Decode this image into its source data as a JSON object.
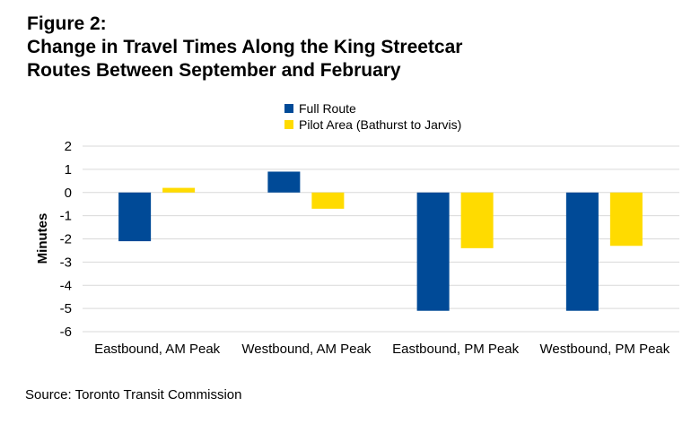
{
  "title_line1": "Figure 2:",
  "title_line2": "Change in Travel Times Along the King Streetcar",
  "title_line3": "Routes Between September and February",
  "source": "Source: Toronto Transit Commission",
  "chart_data": {
    "type": "bar",
    "categories": [
      "Eastbound, AM Peak",
      "Westbound, AM Peak",
      "Eastbound, PM Peak",
      "Westbound, PM Peak"
    ],
    "series": [
      {
        "name": "Full Route",
        "color": "#004A97",
        "values": [
          -2.1,
          0.9,
          -5.1,
          -5.1
        ]
      },
      {
        "name": "Pilot Area (Bathurst to Jarvis)",
        "color": "#FFDB00",
        "values": [
          0.2,
          -0.7,
          -2.4,
          -2.3
        ]
      }
    ],
    "xlabel": "",
    "ylabel": "Minutes",
    "ylim": [
      -6,
      2
    ],
    "yticks": [
      "2",
      "1",
      "0",
      "-1",
      "-2",
      "-3",
      "-4",
      "-5",
      "-6"
    ],
    "grid": true,
    "legend_position": "top-center"
  }
}
